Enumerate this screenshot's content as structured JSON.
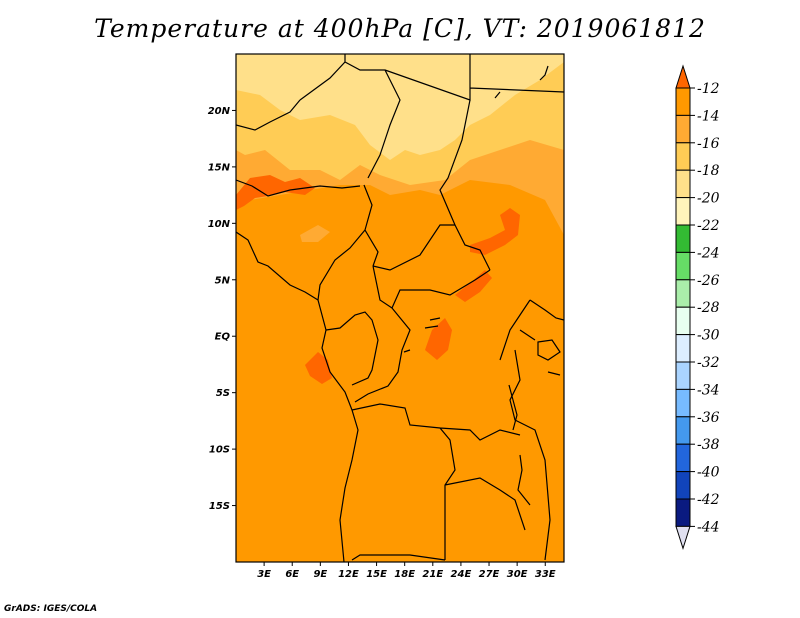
{
  "title": "Temperature at 400hPa [C], VT: 2019061812",
  "credit": "GrADS: IGES/COLA",
  "map": {
    "projection": "latlon",
    "lon_range": [
      0,
      35
    ],
    "lat_range": [
      -20,
      25
    ],
    "lat_ticks": [
      {
        "value": 20,
        "label": "20N"
      },
      {
        "value": 15,
        "label": "15N"
      },
      {
        "value": 10,
        "label": "10N"
      },
      {
        "value": 5,
        "label": "5N"
      },
      {
        "value": 0,
        "label": "EQ"
      },
      {
        "value": -5,
        "label": "5S"
      },
      {
        "value": -10,
        "label": "10S"
      },
      {
        "value": -15,
        "label": "15S"
      }
    ],
    "lon_ticks": [
      {
        "value": 3,
        "label": "3E"
      },
      {
        "value": 6,
        "label": "6E"
      },
      {
        "value": 9,
        "label": "9E"
      },
      {
        "value": 12,
        "label": "12E"
      },
      {
        "value": 15,
        "label": "15E"
      },
      {
        "value": 18,
        "label": "18E"
      },
      {
        "value": 21,
        "label": "21E"
      },
      {
        "value": 24,
        "label": "24E"
      },
      {
        "value": 27,
        "label": "27E"
      },
      {
        "value": 30,
        "label": "30E"
      },
      {
        "value": 33,
        "label": "33E"
      }
    ]
  },
  "colorbar": {
    "levels": [
      "-12",
      "-14",
      "-16",
      "-18",
      "-20",
      "-22",
      "-24",
      "-26",
      "-28",
      "-30",
      "-32",
      "-34",
      "-36",
      "-38",
      "-40",
      "-42",
      "-44"
    ],
    "colors": [
      "#ff6600",
      "#ff9900",
      "#ffaa33",
      "#ffcc55",
      "#ffe08a",
      "#fff4bb",
      "#33bb33",
      "#66dd66",
      "#aaeeaa",
      "#e8fff0",
      "#ddeeff",
      "#aad4ff",
      "#77bbff",
      "#4499ee",
      "#2266dd",
      "#1144bb",
      "#0a1a80",
      "#e0e0f0"
    ]
  },
  "field_colors": {
    "base": "#ff9900",
    "warm_patch": "#ff6600",
    "mid": "#ffaa33",
    "light": "#ffcc55",
    "pale": "#ffe08a"
  }
}
